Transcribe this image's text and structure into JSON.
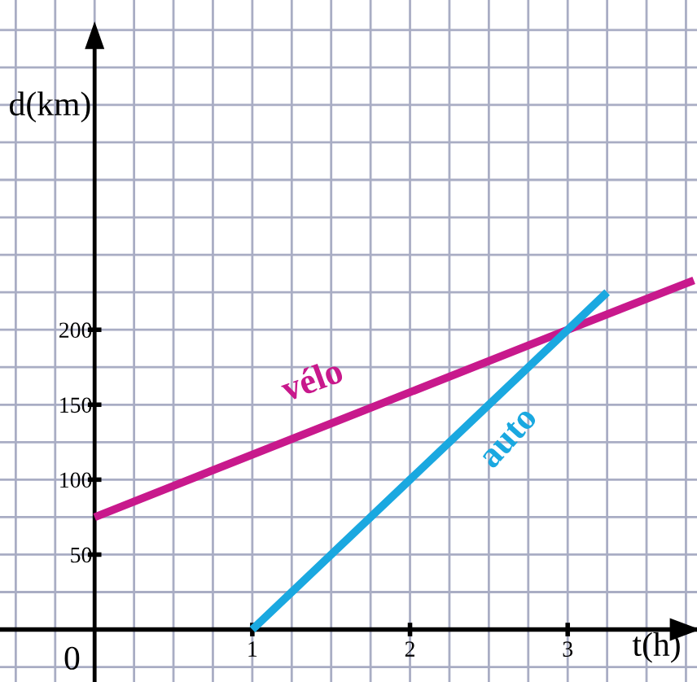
{
  "chart_data": {
    "type": "line",
    "xlabel": "t(h)",
    "ylabel": "d(km)",
    "series": [
      {
        "name": "vélo",
        "color": "#c8198c",
        "x": [
          0,
          3,
          3.8
        ],
        "values": [
          75,
          200,
          233
        ]
      },
      {
        "name": "auto",
        "color": "#1aa8e0",
        "x": [
          1,
          2,
          3,
          3.25
        ],
        "values": [
          0,
          100,
          200,
          225
        ]
      }
    ],
    "xlim": [
      -0.6,
      3.82
    ],
    "ylim": [
      -35,
      420
    ],
    "xticks": [
      1,
      2,
      3
    ],
    "annotations": [
      "0"
    ],
    "yticks": [
      50,
      100,
      150,
      200
    ],
    "grid": true,
    "legend": false,
    "marker": "none",
    "line_style": "solid"
  }
}
